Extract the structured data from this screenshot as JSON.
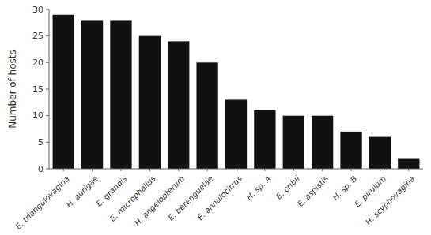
{
  "chart_data": {
    "type": "bar",
    "categories": [
      "E. triangulovagina",
      "H. aurigae",
      "E. grandis",
      "E. microphallus",
      "H. angelopterum",
      "E. berenguelae",
      "E. annulocirrus",
      "H. sp. A",
      "E. cribii",
      "E. aspistis",
      "H. sp. B",
      "E. pirulum",
      "H. scyphovagina"
    ],
    "values": [
      29,
      28,
      28,
      25,
      24,
      20,
      13,
      11,
      10,
      10,
      7,
      6,
      2
    ],
    "color": "#111111",
    "ylabel": "Number of hosts",
    "ylim": [
      0,
      30
    ],
    "yticks": [
      0,
      5,
      10,
      15,
      20,
      25,
      30
    ],
    "grid": false
  }
}
